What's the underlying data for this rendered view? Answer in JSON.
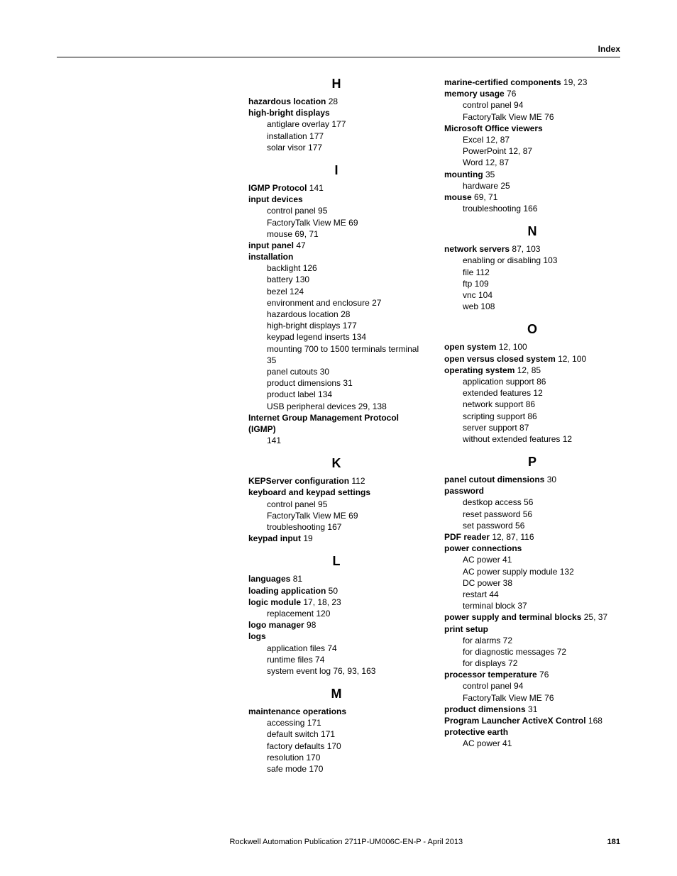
{
  "header": {
    "label": "Index"
  },
  "footer": {
    "publication": "Rockwell Automation Publication 2711P-UM006C-EN-P - April 2013",
    "page": "181"
  },
  "col1": [
    {
      "type": "letter",
      "text": "H"
    },
    {
      "type": "term",
      "term": "hazardous location",
      "pages": " 28"
    },
    {
      "type": "term",
      "term": "high-bright displays",
      "pages": ""
    },
    {
      "type": "sub",
      "text": "antiglare overlay 177"
    },
    {
      "type": "sub",
      "text": "installation 177"
    },
    {
      "type": "sub",
      "text": "solar visor 177"
    },
    {
      "type": "letter",
      "text": "I"
    },
    {
      "type": "term",
      "term": "IGMP Protocol",
      "pages": " 141"
    },
    {
      "type": "term",
      "term": "input devices",
      "pages": ""
    },
    {
      "type": "sub",
      "text": "control panel 95"
    },
    {
      "type": "sub",
      "text": "FactoryTalk View ME 69"
    },
    {
      "type": "sub",
      "text": "mouse 69, 71"
    },
    {
      "type": "term",
      "term": "input panel",
      "pages": " 47"
    },
    {
      "type": "term",
      "term": "installation",
      "pages": ""
    },
    {
      "type": "sub",
      "text": "backlight 126"
    },
    {
      "type": "sub",
      "text": "battery 130"
    },
    {
      "type": "sub",
      "text": "bezel 124"
    },
    {
      "type": "sub",
      "text": "environment and enclosure 27"
    },
    {
      "type": "sub",
      "text": "hazardous location 28"
    },
    {
      "type": "sub",
      "text": "high-bright displays 177"
    },
    {
      "type": "sub",
      "text": "keypad legend inserts 134"
    },
    {
      "type": "sub",
      "text": "mounting 700 to 1500 terminals terminal 35"
    },
    {
      "type": "sub",
      "text": "panel cutouts 30"
    },
    {
      "type": "sub",
      "text": "product dimensions 31"
    },
    {
      "type": "sub",
      "text": "product label 134"
    },
    {
      "type": "sub",
      "text": "USB peripheral devices 29, 138"
    },
    {
      "type": "term",
      "term": "Internet Group Management Protocol (IGMP)",
      "pages": ""
    },
    {
      "type": "sub",
      "text": "141"
    },
    {
      "type": "letter",
      "text": "K"
    },
    {
      "type": "term",
      "term": "KEPServer configuration",
      "pages": " 112"
    },
    {
      "type": "term",
      "term": "keyboard and keypad settings",
      "pages": ""
    },
    {
      "type": "sub",
      "text": "control panel 95"
    },
    {
      "type": "sub",
      "text": "FactoryTalk View ME 69"
    },
    {
      "type": "sub",
      "text": "troubleshooting 167"
    },
    {
      "type": "term",
      "term": "keypad input",
      "pages": " 19"
    },
    {
      "type": "letter",
      "text": "L"
    },
    {
      "type": "term",
      "term": "languages",
      "pages": " 81"
    },
    {
      "type": "term",
      "term": "loading application",
      "pages": " 50"
    },
    {
      "type": "term",
      "term": "logic module",
      "pages": " 17, 18, 23"
    },
    {
      "type": "sub",
      "text": "replacement 120"
    },
    {
      "type": "term",
      "term": "logo manager",
      "pages": " 98"
    },
    {
      "type": "term",
      "term": "logs",
      "pages": ""
    },
    {
      "type": "sub",
      "text": "application files 74"
    },
    {
      "type": "sub",
      "text": "runtime files 74"
    },
    {
      "type": "sub",
      "text": "system event log 76, 93, 163"
    },
    {
      "type": "letter",
      "text": "M"
    },
    {
      "type": "term",
      "term": "maintenance operations",
      "pages": ""
    },
    {
      "type": "sub",
      "text": "accessing 171"
    },
    {
      "type": "sub",
      "text": "default switch 171"
    },
    {
      "type": "sub",
      "text": "factory defaults 170"
    },
    {
      "type": "sub",
      "text": "resolution 170"
    },
    {
      "type": "sub",
      "text": "safe mode 170"
    }
  ],
  "col2": [
    {
      "type": "term",
      "term": "marine-certified components",
      "pages": " 19, 23"
    },
    {
      "type": "term",
      "term": "memory usage",
      "pages": " 76"
    },
    {
      "type": "sub",
      "text": "control panel 94"
    },
    {
      "type": "sub",
      "text": "FactoryTalk View ME 76"
    },
    {
      "type": "term",
      "term": "Microsoft Office viewers",
      "pages": ""
    },
    {
      "type": "sub",
      "text": "Excel 12, 87"
    },
    {
      "type": "sub",
      "text": "PowerPoint 12, 87"
    },
    {
      "type": "sub",
      "text": "Word 12, 87"
    },
    {
      "type": "term",
      "term": "mounting",
      "pages": " 35"
    },
    {
      "type": "sub",
      "text": "hardware 25"
    },
    {
      "type": "term",
      "term": "mouse",
      "pages": " 69, 71"
    },
    {
      "type": "sub",
      "text": "troubleshooting 166"
    },
    {
      "type": "letter",
      "text": "N"
    },
    {
      "type": "term",
      "term": "network servers",
      "pages": " 87, 103"
    },
    {
      "type": "sub",
      "text": "enabling or disabling 103"
    },
    {
      "type": "sub",
      "text": "file 112"
    },
    {
      "type": "sub",
      "text": "ftp 109"
    },
    {
      "type": "sub",
      "text": "vnc 104"
    },
    {
      "type": "sub",
      "text": "web 108"
    },
    {
      "type": "letter",
      "text": "O"
    },
    {
      "type": "term",
      "term": "open system",
      "pages": " 12, 100"
    },
    {
      "type": "term",
      "term": "open versus closed system",
      "pages": " 12, 100"
    },
    {
      "type": "term",
      "term": "operating system",
      "pages": " 12, 85"
    },
    {
      "type": "sub",
      "text": "application support 86"
    },
    {
      "type": "sub",
      "text": "extended features 12"
    },
    {
      "type": "sub",
      "text": "network support 86"
    },
    {
      "type": "sub",
      "text": "scripting support 86"
    },
    {
      "type": "sub",
      "text": "server support 87"
    },
    {
      "type": "sub",
      "text": "without extended features 12"
    },
    {
      "type": "letter",
      "text": "P"
    },
    {
      "type": "term",
      "term": "panel cutout dimensions",
      "pages": " 30"
    },
    {
      "type": "term",
      "term": "password",
      "pages": ""
    },
    {
      "type": "sub",
      "text": "destkop access 56"
    },
    {
      "type": "sub",
      "text": "reset password 56"
    },
    {
      "type": "sub",
      "text": "set password 56"
    },
    {
      "type": "term",
      "term": "PDF reader",
      "pages": " 12, 87, 116"
    },
    {
      "type": "term",
      "term": "power connections",
      "pages": ""
    },
    {
      "type": "sub",
      "text": "AC power 41"
    },
    {
      "type": "sub",
      "text": "AC power supply module 132"
    },
    {
      "type": "sub",
      "text": "DC power 38"
    },
    {
      "type": "sub",
      "text": "restart 44"
    },
    {
      "type": "sub",
      "text": "terminal block 37"
    },
    {
      "type": "term",
      "term": "power supply and terminal blocks",
      "pages": " 25, 37"
    },
    {
      "type": "term",
      "term": "print setup",
      "pages": ""
    },
    {
      "type": "sub",
      "text": "for alarms 72"
    },
    {
      "type": "sub",
      "text": "for diagnostic messages 72"
    },
    {
      "type": "sub",
      "text": "for displays 72"
    },
    {
      "type": "term",
      "term": "processor temperature",
      "pages": " 76"
    },
    {
      "type": "sub",
      "text": "control panel 94"
    },
    {
      "type": "sub",
      "text": "FactoryTalk View ME 76"
    },
    {
      "type": "term",
      "term": "product dimensions",
      "pages": " 31"
    },
    {
      "type": "term",
      "term": "Program Launcher ActiveX Control",
      "pages": " 168"
    },
    {
      "type": "term",
      "term": "protective earth",
      "pages": ""
    },
    {
      "type": "sub",
      "text": "AC power 41"
    }
  ]
}
